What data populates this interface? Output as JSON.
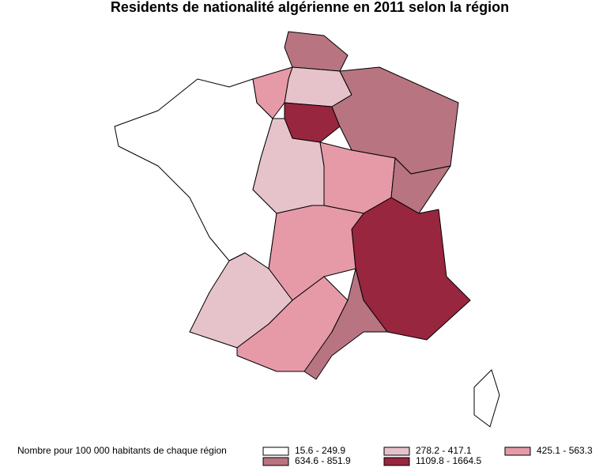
{
  "title": "Residents de nationalité algérienne en 2011 selon la région",
  "legend": {
    "title": "Nombre pour 100 000 habitants de chaque région",
    "classes": [
      {
        "label": "15.6 - 249.9",
        "color": "#ffffff"
      },
      {
        "label": "278.2 - 417.1",
        "color": "#e6c3cb"
      },
      {
        "label": "425.1 - 563.3",
        "color": "#e69aa7"
      },
      {
        "label": "634.6 - 851.9",
        "color": "#b87481"
      },
      {
        "label": "1109.8 - 1664.5",
        "color": "#98263e"
      }
    ]
  }
}
